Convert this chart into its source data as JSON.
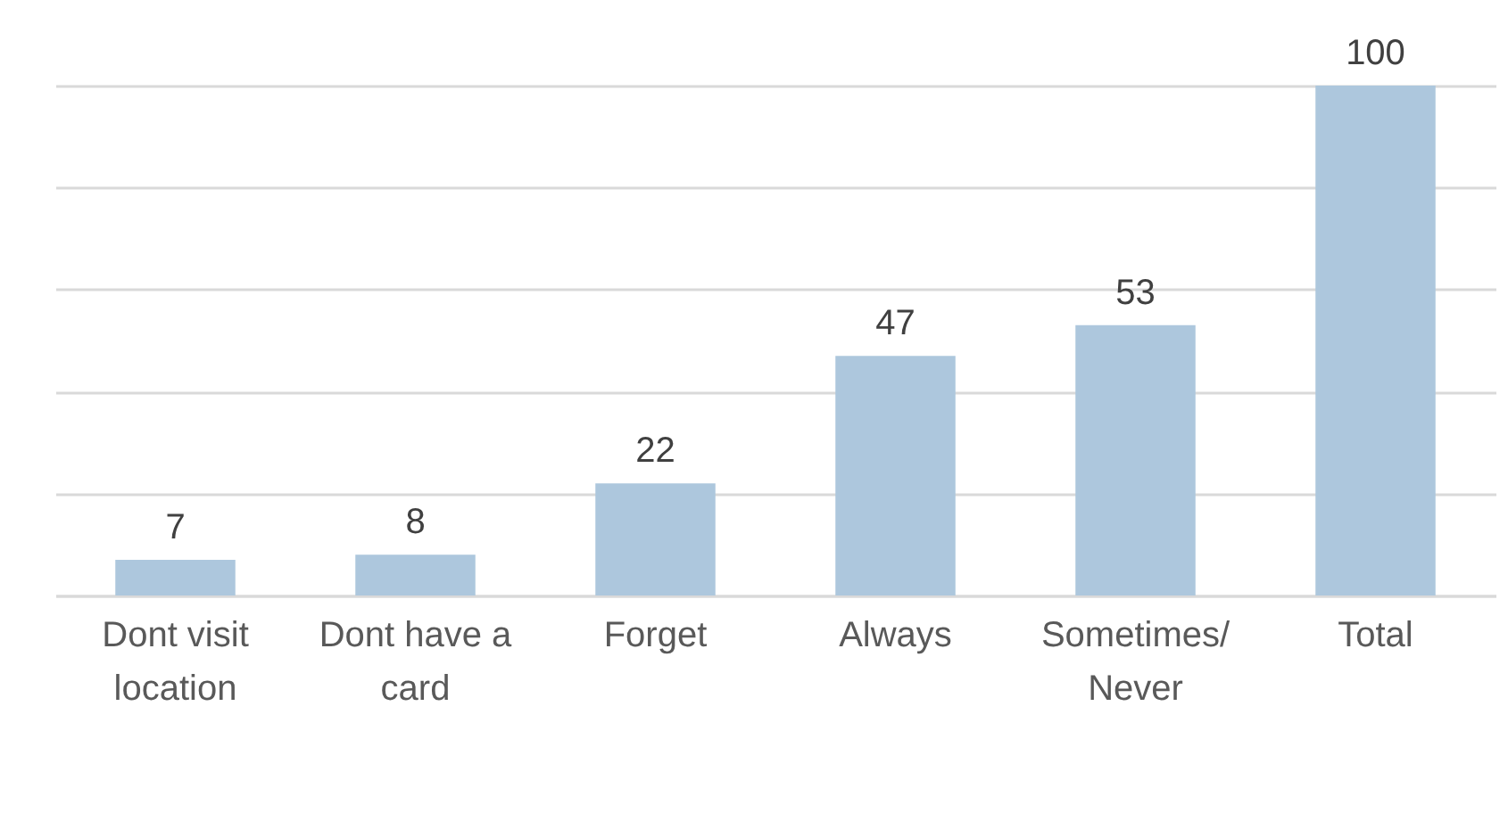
{
  "chart_data": {
    "type": "bar",
    "categories": [
      "Dont visit location",
      "Dont have a card",
      "Forget",
      "Always",
      "Sometimes/ Never",
      "Total"
    ],
    "values": [
      7,
      8,
      22,
      47,
      53,
      100
    ],
    "color": "#adc7dd",
    "ylim": [
      0,
      100
    ],
    "yticks": [
      {
        "value": 0,
        "label": null
      },
      {
        "value": 20,
        "label": null
      },
      {
        "value": 40,
        "label": null
      },
      {
        "value": 60,
        "label": null
      },
      {
        "value": 80,
        "label": null
      },
      {
        "value": 100,
        "label": null
      }
    ],
    "grid": "y",
    "tick_labels": "x",
    "data_labels": true
  }
}
